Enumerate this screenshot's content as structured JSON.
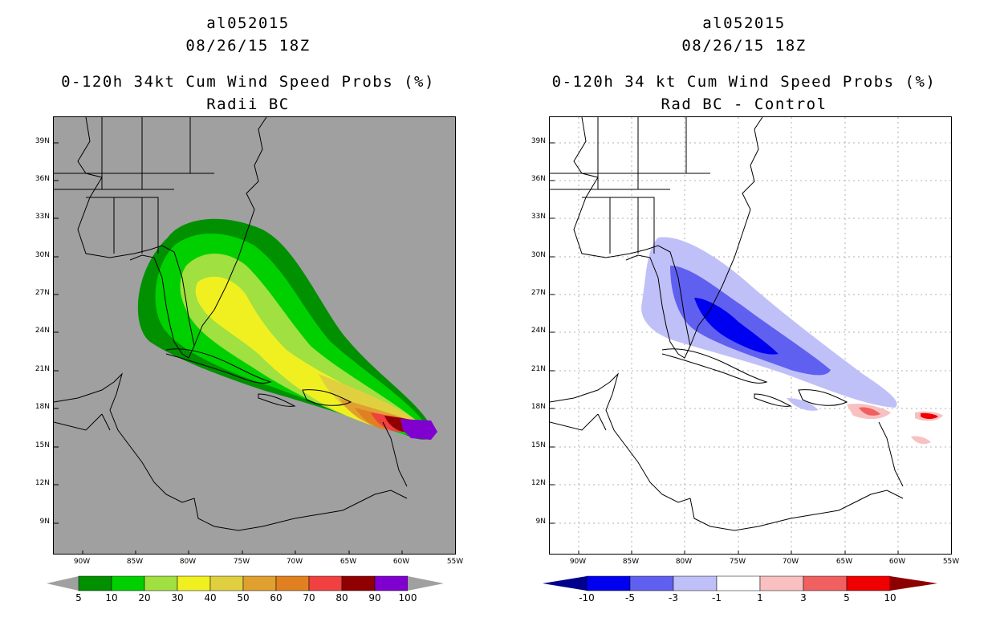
{
  "left": {
    "title": [
      "al052015",
      "08/26/15 18Z",
      "0-120h 34kt Cum Wind Speed Probs (%)",
      "Radii BC"
    ],
    "lat_labels": [
      "39N",
      "36N",
      "33N",
      "30N",
      "27N",
      "24N",
      "21N",
      "18N",
      "15N",
      "12N",
      "9N"
    ],
    "lon_labels": [
      "90W",
      "85W",
      "80W",
      "75W",
      "70W",
      "65W",
      "60W",
      "55W"
    ],
    "legend": {
      "colors": [
        "#a0a0a0",
        "#009000",
        "#00d000",
        "#a0e040",
        "#f0f020",
        "#e0d040",
        "#e0a030",
        "#e08020",
        "#f04040",
        "#900000",
        "#8000d0",
        "#a0a0a0"
      ],
      "labels": [
        "5",
        "10",
        "20",
        "30",
        "40",
        "50",
        "60",
        "70",
        "80",
        "90",
        "100"
      ]
    },
    "background": "#a0a0a0"
  },
  "right": {
    "title": [
      "al052015",
      "08/26/15 18Z",
      "0-120h 34 kt Cum Wind Speed Probs (%)",
      "Rad BC - Control"
    ],
    "lat_labels": [
      "39N",
      "36N",
      "33N",
      "30N",
      "27N",
      "24N",
      "21N",
      "18N",
      "15N",
      "12N",
      "9N"
    ],
    "lon_labels": [
      "90W",
      "85W",
      "80W",
      "75W",
      "70W",
      "65W",
      "60W",
      "55W"
    ],
    "legend": {
      "colors": [
        "#00008c",
        "#0000f0",
        "#6060f0",
        "#c0c0f8",
        "#ffffff",
        "#f8c0c0",
        "#f06060",
        "#f00000",
        "#8c0000"
      ],
      "labels": [
        "-10",
        "-5",
        "-3",
        "-1",
        "1",
        "3",
        "5",
        "10"
      ]
    },
    "background": "#ffffff"
  }
}
